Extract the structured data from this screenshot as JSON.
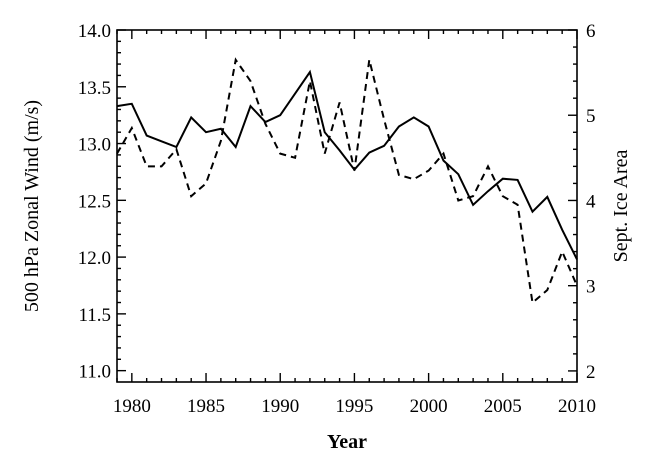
{
  "chart_data": {
    "type": "line",
    "title": "",
    "xlabel": "Year",
    "ylabel_left": "500 hPa Zonal Wind (m/s)",
    "ylabel_right": "Sept. Ice Area",
    "xlim": [
      1979,
      2010
    ],
    "ylim_left": [
      10.9,
      14.0
    ],
    "ylim_right": [
      1.87,
      6.0
    ],
    "x_ticks": [
      1980,
      1985,
      1990,
      1995,
      2000,
      2005,
      2010
    ],
    "y_left_ticks": [
      11.0,
      11.5,
      12.0,
      12.5,
      13.0,
      13.5,
      14.0
    ],
    "y_right_ticks": [
      2,
      3,
      4,
      5,
      6
    ],
    "x_tick_labels": [
      "1980",
      "1985",
      "1990",
      "1995",
      "2000",
      "2005",
      "2010"
    ],
    "y_left_tick_labels": [
      "11.0",
      "11.5",
      "12.0",
      "12.5",
      "13.0",
      "13.5",
      "14.0"
    ],
    "y_right_tick_labels": [
      "2",
      "3",
      "4",
      "5",
      "6"
    ],
    "grid": false,
    "series": [
      {
        "axis": "left",
        "style": "solid",
        "x": [
          1979,
          1980,
          1981,
          1982,
          1983,
          1984,
          1985,
          1986,
          1987,
          1988,
          1989,
          1990,
          1991,
          1992,
          1993,
          1994,
          1995,
          1996,
          1997,
          1998,
          1999,
          2000,
          2001,
          2002,
          2003,
          2004,
          2005,
          2006,
          2007,
          2008,
          2009,
          2010
        ],
        "values": [
          13.33,
          13.35,
          13.07,
          13.02,
          12.97,
          13.23,
          13.1,
          13.13,
          12.97,
          13.33,
          13.19,
          13.25,
          13.44,
          13.63,
          13.1,
          12.94,
          12.77,
          12.92,
          12.98,
          13.15,
          13.23,
          13.15,
          12.85,
          12.73,
          12.46,
          12.58,
          12.69,
          12.68,
          12.4,
          12.53,
          12.24,
          11.98
        ]
      },
      {
        "axis": "right",
        "style": "dashed",
        "x": [
          1979,
          1980,
          1981,
          1982,
          1983,
          1984,
          1985,
          1986,
          1987,
          1988,
          1989,
          1990,
          1991,
          1992,
          1993,
          1994,
          1995,
          1996,
          1997,
          1998,
          1999,
          2000,
          2001,
          2002,
          2003,
          2004,
          2005,
          2006,
          2007,
          2008,
          2009,
          2010
        ],
        "values": [
          4.55,
          4.85,
          4.4,
          4.4,
          4.6,
          4.05,
          4.2,
          4.7,
          5.65,
          5.4,
          4.9,
          4.55,
          4.5,
          5.4,
          4.55,
          5.15,
          4.35,
          5.65,
          4.95,
          4.3,
          4.25,
          4.35,
          4.55,
          4.0,
          4.05,
          4.4,
          4.05,
          3.95,
          2.8,
          2.95,
          3.4,
          3.0
        ]
      }
    ]
  }
}
